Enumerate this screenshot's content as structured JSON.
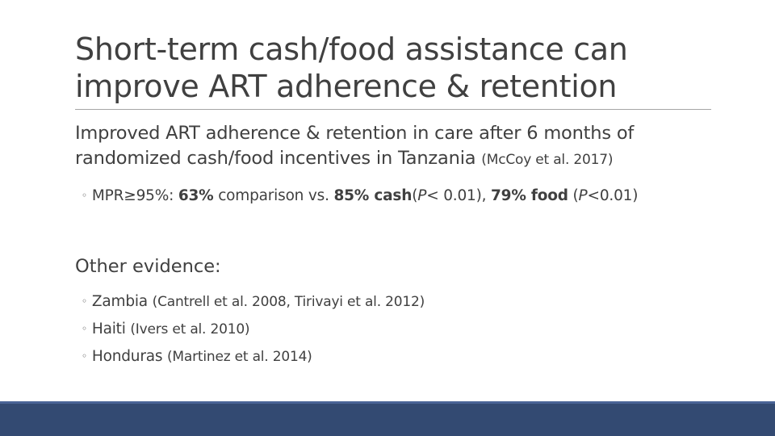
{
  "title": {
    "line1": "Short-term cash/food assistance can",
    "line2": "improve ART adherence & retention"
  },
  "lead": {
    "text": "Improved ART adherence & retention in care after 6 months of randomized cash/food incentives in Tanzania",
    "citation": "(McCoy et al. 2017)"
  },
  "result_bullet": {
    "marker": "◦",
    "prefix": "MPR≥95%:",
    "val1": "63%",
    "text1": "comparison vs.",
    "val2": "85% cash",
    "p1_open": "(",
    "p1_letter": "P",
    "p1_rest": "< 0.01),",
    "val3": "79% food",
    "p2_open": "(",
    "p2_letter": "P",
    "p2_rest": "<0.01)"
  },
  "other": {
    "heading": "Other evidence:",
    "items": [
      {
        "marker": "◦",
        "place": "Zambia",
        "citation": "(Cantrell et al. 2008, Tirivayi et al. 2012)"
      },
      {
        "marker": "◦",
        "place": "Haiti",
        "citation": "(Ivers et al. 2010)"
      },
      {
        "marker": "◦",
        "place": "Honduras",
        "citation": "(Martinez et al. 2014)"
      }
    ]
  },
  "colors": {
    "text": "#404040",
    "rule": "#a6a6a6",
    "footer_bar": "#334a72"
  }
}
